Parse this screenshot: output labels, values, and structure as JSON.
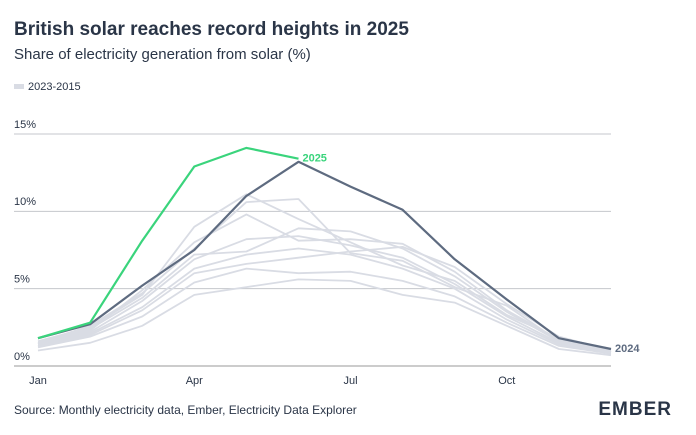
{
  "chart_data": {
    "type": "line",
    "title": "British solar reaches record heights in 2025",
    "subtitle": "Share of electricity generation from solar (%)",
    "source": "Source: Monthly electricity data, Ember, Electricity Data Explorer",
    "logo": "EMBER",
    "categories": [
      "Jan",
      null,
      null,
      "Apr",
      null,
      null,
      "Jul",
      null,
      null,
      "Oct",
      null,
      null
    ],
    "ylim": [
      0,
      15
    ],
    "yticks": [
      {
        "value": 0,
        "label": "0%"
      },
      {
        "value": 5,
        "label": "5%"
      },
      {
        "value": 10,
        "label": "10%"
      },
      {
        "value": 15,
        "label": "15%"
      }
    ],
    "grid": true,
    "background": {
      "name": "2023-2015",
      "color": "#d9dce4",
      "series": [
        [
          1.0,
          1.5,
          2.6,
          4.6,
          5.1,
          5.6,
          5.5,
          4.6,
          4.1,
          2.6,
          1.1,
          0.7
        ],
        [
          1.2,
          1.9,
          3.2,
          5.4,
          6.3,
          6.0,
          6.1,
          5.5,
          4.5,
          2.8,
          1.3,
          0.8
        ],
        [
          1.3,
          2.1,
          3.8,
          6.3,
          7.2,
          7.6,
          7.2,
          6.3,
          5.0,
          3.0,
          1.4,
          0.8
        ],
        [
          1.4,
          2.2,
          4.2,
          6.9,
          8.2,
          8.4,
          7.8,
          7.0,
          5.3,
          3.2,
          1.5,
          0.9
        ],
        [
          1.5,
          2.4,
          4.4,
          7.2,
          7.4,
          8.9,
          8.7,
          7.6,
          5.8,
          3.5,
          1.6,
          0.9
        ],
        [
          1.4,
          2.3,
          4.9,
          8.0,
          9.8,
          8.1,
          8.2,
          7.9,
          6.1,
          3.6,
          1.7,
          1.0
        ],
        [
          1.6,
          2.5,
          4.6,
          9.0,
          11.1,
          9.5,
          8.0,
          6.5,
          5.5,
          3.3,
          1.8,
          1.1
        ],
        [
          1.5,
          2.6,
          4.7,
          7.6,
          10.6,
          10.8,
          7.3,
          6.8,
          5.1,
          3.9,
          1.6,
          0.9
        ],
        [
          1.3,
          2.0,
          3.6,
          6.0,
          6.6,
          7.0,
          7.4,
          7.7,
          6.4,
          4.0,
          1.9,
          1.0
        ]
      ]
    },
    "series": [
      {
        "name": "2024",
        "color": "#5e6b80",
        "values": [
          1.8,
          2.7,
          5.2,
          7.5,
          11.0,
          13.2,
          11.6,
          10.1,
          6.9,
          4.3,
          1.8,
          1.1
        ]
      },
      {
        "name": "2025",
        "color": "#3ad47c",
        "values": [
          1.8,
          2.8,
          8.1,
          12.9,
          14.1,
          13.4,
          null,
          null,
          null,
          null,
          null,
          null
        ]
      }
    ]
  }
}
